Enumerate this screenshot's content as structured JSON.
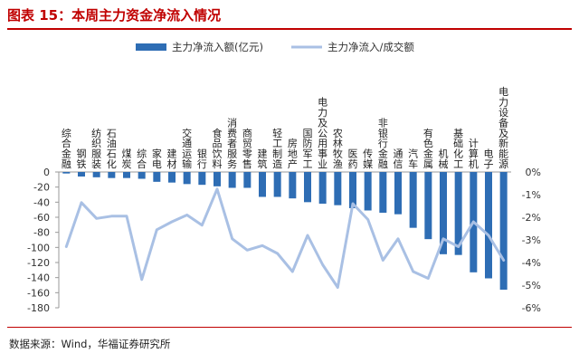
{
  "header": {
    "title": "图表 15：本周主力资金净流入情况"
  },
  "footer": {
    "source": "数据来源：Wind，华福证券研究所"
  },
  "colors": {
    "bar": "#2e6db4",
    "line": "#a9c0e4",
    "accent": "#c00000"
  },
  "chart_data": {
    "type": "bar+line",
    "legend": [
      "主力净流入额(亿元)",
      "主力净流入/成交额"
    ],
    "legend_position": "top",
    "categories": [
      "综合金融",
      "钢铁",
      "纺织服装",
      "石油石化",
      "煤炭",
      "综合",
      "家电",
      "建材",
      "交通运输",
      "银行",
      "食品饮料",
      "消费者服务",
      "商贸零售",
      "建筑",
      "轻工制造",
      "房地产",
      "国防军工",
      "电力及公用事业",
      "农林牧渔",
      "医药",
      "传媒",
      "非银行金融",
      "通信",
      "汽车",
      "有色金属",
      "机械",
      "基础化工",
      "计算机",
      "电子",
      "电力设备及新能源"
    ],
    "series": [
      {
        "name": "主力净流入额(亿元)",
        "axis": "left",
        "type": "bar",
        "values": [
          -2,
          -6,
          -7,
          -8,
          -8,
          -9,
          -13,
          -14,
          -16,
          -17,
          -19,
          -21,
          -21,
          -33,
          -33,
          -35,
          -40,
          -42,
          -44,
          -48,
          -51,
          -54,
          -56,
          -74,
          -89,
          -109,
          -110,
          -133,
          -141,
          -156
        ]
      },
      {
        "name": "主力净流入/成交额",
        "axis": "right",
        "type": "line",
        "unit": "%",
        "values": [
          -3.3,
          -1.35,
          -2.05,
          -1.95,
          -1.95,
          -4.75,
          -2.55,
          -2.2,
          -1.9,
          -2.35,
          -0.75,
          -2.95,
          -3.45,
          -3.25,
          -3.6,
          -4.4,
          -2.8,
          -4.1,
          -5.1,
          -1.4,
          -2.1,
          -3.9,
          -2.95,
          -4.4,
          -4.7,
          -2.95,
          -3.3,
          -2.2,
          -2.8,
          -3.9
        ]
      }
    ],
    "yleft": {
      "min": -180,
      "max": 0,
      "ticks": [
        0,
        -20,
        -40,
        -60,
        -80,
        -100,
        -120,
        -140,
        -160,
        -180
      ]
    },
    "yright": {
      "min": -6,
      "max": 0,
      "ticks": [
        "0%",
        "-1%",
        "-2%",
        "-3%",
        "-4%",
        "-5%",
        "-6%"
      ]
    }
  }
}
